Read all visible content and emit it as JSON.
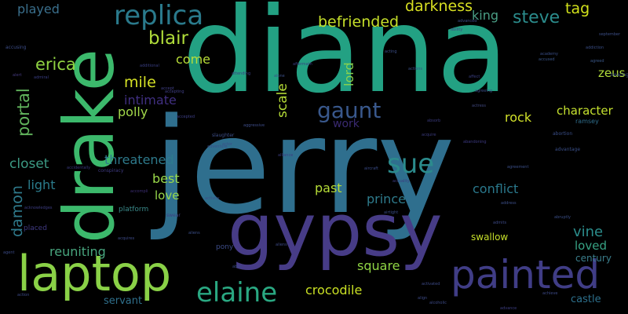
{
  "word_cloud": {
    "background": "#000000",
    "words": [
      {
        "id": "jerry",
        "text": "jerry",
        "color": "#2f6f8e"
      },
      {
        "id": "diana",
        "text": "diana",
        "color": "#23a183"
      },
      {
        "id": "drake",
        "text": "drake",
        "color": "#3cb96c"
      },
      {
        "id": "gypsy",
        "text": "gypsy",
        "color": "#473c87"
      },
      {
        "id": "laptop",
        "text": "laptop",
        "color": "#8ad147"
      },
      {
        "id": "painted",
        "text": "painted",
        "color": "#403d86"
      },
      {
        "id": "replica",
        "text": "replica",
        "color": "#2a7a8c"
      },
      {
        "id": "elaine",
        "text": "elaine",
        "color": "#2aa882"
      },
      {
        "id": "sue",
        "text": "sue",
        "color": "#2b8b8c"
      },
      {
        "id": "gaunt",
        "text": "gaunt",
        "color": "#39588c"
      },
      {
        "id": "blair",
        "text": "blair",
        "color": "#b0dc3a"
      },
      {
        "id": "befriended",
        "text": "befriended",
        "color": "#c6df2a"
      },
      {
        "id": "darkness",
        "text": "darkness",
        "color": "#d8e022"
      },
      {
        "id": "steve",
        "text": "steve",
        "color": "#2b8c8c"
      },
      {
        "id": "tag",
        "text": "tag",
        "color": "#d2e21b"
      },
      {
        "id": "king",
        "text": "king",
        "color": "#4a9e85"
      },
      {
        "id": "portal",
        "text": "portal",
        "color": "#62b55d"
      },
      {
        "id": "erica",
        "text": "erica",
        "color": "#90d442"
      },
      {
        "id": "played",
        "text": "played",
        "color": "#3a6f8c"
      },
      {
        "id": "mile",
        "text": "mile",
        "color": "#d6e226"
      },
      {
        "id": "come",
        "text": "come",
        "color": "#b8dd38"
      },
      {
        "id": "intimate",
        "text": "intimate",
        "color": "#402f80"
      },
      {
        "id": "polly",
        "text": "polly",
        "color": "#a2d84a"
      },
      {
        "id": "lord",
        "text": "lord",
        "color": "#8ad24e"
      },
      {
        "id": "scale",
        "text": "scale",
        "color": "#b6dd37"
      },
      {
        "id": "work",
        "text": "work",
        "color": "#3a2a72"
      },
      {
        "id": "rock",
        "text": "rock",
        "color": "#d2e22a"
      },
      {
        "id": "character",
        "text": "character",
        "color": "#c4e02f"
      },
      {
        "id": "zeus",
        "text": "zeus",
        "color": "#b0dc3a"
      },
      {
        "id": "closet",
        "text": "closet",
        "color": "#3c9a84"
      },
      {
        "id": "damon",
        "text": "damon",
        "color": "#2f7a8c"
      },
      {
        "id": "light",
        "text": "light",
        "color": "#2b7c8c"
      },
      {
        "id": "threatened",
        "text": "threatened",
        "color": "#2e7a8c"
      },
      {
        "id": "best",
        "text": "best",
        "color": "#9ad94a"
      },
      {
        "id": "love",
        "text": "love",
        "color": "#97d84b"
      },
      {
        "id": "past",
        "text": "past",
        "color": "#b6dd37"
      },
      {
        "id": "prince",
        "text": "prince",
        "color": "#2e7b8c"
      },
      {
        "id": "conflict",
        "text": "conflict",
        "color": "#2a788c"
      },
      {
        "id": "vine",
        "text": "vine",
        "color": "#2b8d8c"
      },
      {
        "id": "loved",
        "text": "loved",
        "color": "#37a384"
      },
      {
        "id": "century",
        "text": "century",
        "color": "#3a7d8b"
      },
      {
        "id": "swallow",
        "text": "swallow",
        "color": "#c6df2a"
      },
      {
        "id": "square",
        "text": "square",
        "color": "#8fd444"
      },
      {
        "id": "reuniting",
        "text": "reuniting",
        "color": "#48a57e"
      },
      {
        "id": "crocodile",
        "text": "crocodile",
        "color": "#c9e024"
      },
      {
        "id": "servant",
        "text": "servant",
        "color": "#2f6f8b"
      },
      {
        "id": "castle",
        "text": "castle",
        "color": "#2d708c"
      },
      {
        "id": "pony",
        "text": "pony",
        "color": "#3d4d89"
      },
      {
        "id": "platform",
        "text": "platform",
        "color": "#3a8a8a"
      },
      {
        "id": "placed",
        "text": "placed",
        "color": "#403a82"
      },
      {
        "id": "swear",
        "text": "swear",
        "color": "#3e3e82"
      },
      {
        "id": "ramsey",
        "text": "ramsey",
        "color": "#2f6e8c"
      },
      {
        "id": "advantage",
        "text": "advantage",
        "color": "#3a4f88"
      },
      {
        "id": "abortion",
        "text": "abortion",
        "color": "#3a4e88"
      },
      {
        "id": "accusing",
        "text": "accusing",
        "color": "#3d4e8a"
      },
      {
        "id": "admiral",
        "text": "admiral",
        "color": "#3a3f85"
      },
      {
        "id": "alert",
        "text": "alert",
        "color": "#44397e"
      },
      {
        "id": "accompli",
        "text": "accompli",
        "color": "#3d2f75"
      },
      {
        "id": "accept",
        "text": "accept",
        "color": "#414087"
      },
      {
        "id": "accepting",
        "text": "accepting",
        "color": "#414087"
      },
      {
        "id": "accepted",
        "text": "accepted",
        "color": "#3d3f86"
      },
      {
        "id": "accused",
        "text": "accused",
        "color": "#3a5589"
      },
      {
        "id": "academy",
        "text": "academy",
        "color": "#3a4e88"
      },
      {
        "id": "agreed",
        "text": "agreed",
        "color": "#3a5889"
      },
      {
        "id": "september",
        "text": "september",
        "color": "#3d4f88"
      },
      {
        "id": "agreement",
        "text": "agreement",
        "color": "#3b4f89"
      },
      {
        "id": "address",
        "text": "address",
        "color": "#3c4e88"
      },
      {
        "id": "actress",
        "text": "actress",
        "color": "#40487f"
      },
      {
        "id": "ability",
        "text": "ability",
        "color": "#40427f"
      },
      {
        "id": "airtight",
        "text": "airtight",
        "color": "#3a4d88"
      },
      {
        "id": "aircraft",
        "text": "aircraft",
        "color": "#3a4b88"
      },
      {
        "id": "actuality",
        "text": "actuality",
        "color": "#3d3d82"
      },
      {
        "id": "aggressive",
        "text": "aggressive",
        "color": "#3e4d89"
      },
      {
        "id": "slaughter",
        "text": "slaughter",
        "color": "#3e4f89"
      },
      {
        "id": "conspiracy",
        "text": "conspiracy",
        "color": "#3e3a80"
      },
      {
        "id": "activity",
        "text": "activity",
        "color": "#3d4f88"
      },
      {
        "id": "abby",
        "text": "abby",
        "color": "#3b4b88"
      },
      {
        "id": "achieve",
        "text": "achieve",
        "color": "#3d4a87"
      },
      {
        "id": "advance",
        "text": "advance",
        "color": "#3d3e83"
      },
      {
        "id": "align",
        "text": "align",
        "color": "#3d4a87"
      },
      {
        "id": "activated",
        "text": "activated",
        "color": "#3d4a87"
      },
      {
        "id": "alcoholic",
        "text": "alcoholic",
        "color": "#3d4a87"
      },
      {
        "id": "admits",
        "text": "admits",
        "color": "#3d4a87"
      },
      {
        "id": "abandoning",
        "text": "abandoning",
        "color": "#3d3a83"
      },
      {
        "id": "action",
        "text": "action",
        "color": "#3d4a87"
      },
      {
        "id": "acquires",
        "text": "acquires",
        "color": "#3d4a87"
      },
      {
        "id": "acknowledges",
        "text": "acknowledges",
        "color": "#3d3d82"
      },
      {
        "id": "aliens",
        "text": "aliens",
        "color": "#3d4a87"
      },
      {
        "id": "alliance",
        "text": "alliance",
        "color": "#3d3d82"
      },
      {
        "id": "accidentally",
        "text": "accidentally",
        "color": "#3a3a7c"
      },
      {
        "id": "acquire",
        "text": "acquire",
        "color": "#3a3a7c"
      },
      {
        "id": "absorb",
        "text": "absorb",
        "color": "#3a3a7c"
      },
      {
        "id": "agent",
        "text": "agent",
        "color": "#3a4a86"
      },
      {
        "id": "additional",
        "text": "additional",
        "color": "#3a3f83"
      },
      {
        "id": "aftermath",
        "text": "aftermath",
        "color": "#3a3f83"
      },
      {
        "id": "attending",
        "text": "attending",
        "color": "#3a3f83"
      },
      {
        "id": "affect",
        "text": "affect",
        "color": "#3a3f83"
      },
      {
        "id": "abruptly",
        "text": "abruptly",
        "color": "#3b4f88"
      },
      {
        "id": "bearing",
        "text": "bearing",
        "color": "#3b4f88"
      },
      {
        "id": "addiction",
        "text": "addiction",
        "color": "#3b4f88"
      },
      {
        "id": "actor",
        "text": "actor",
        "color": "#3b4f88"
      },
      {
        "id": "adventure",
        "text": "adventure",
        "color": "#3b4f88"
      },
      {
        "id": "alone",
        "text": "alone",
        "color": "#3b4f88"
      },
      {
        "id": "aliens2",
        "text": "aliens",
        "color": "#3b4f88"
      },
      {
        "id": "acting",
        "text": "acting",
        "color": "#3b4f88"
      },
      {
        "id": "actions",
        "text": "actions",
        "color": "#3b4f88"
      },
      {
        "id": "advanced",
        "text": "advanced",
        "color": "#3b4f88"
      },
      {
        "id": "agreeing",
        "text": "agreeing",
        "color": "#3b4f88"
      }
    ]
  }
}
